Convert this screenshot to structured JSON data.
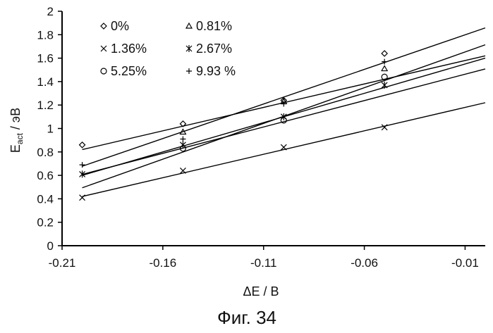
{
  "figure": {
    "caption": "Фиг. 34"
  },
  "chart_data": {
    "type": "scatter",
    "xlabel": "ΔE / B",
    "ylabel_main": "E",
    "ylabel_sub": "act",
    "ylabel_unit": " / эВ",
    "xlim": [
      -0.21,
      0.0
    ],
    "ylim": [
      0,
      2
    ],
    "xticks": [
      -0.21,
      -0.16,
      -0.11,
      -0.06,
      -0.01
    ],
    "xtick_labels": [
      "-0.21",
      "-0.16",
      "-0.11",
      "-0.06",
      "-0.01"
    ],
    "yticks": [
      0,
      0.2,
      0.4,
      0.6,
      0.8,
      1,
      1.2,
      1.4,
      1.6,
      1.8,
      2
    ],
    "ytick_labels": [
      "0",
      "0.2",
      "0.4",
      "0.6",
      "0.8",
      "1",
      "1.2",
      "1.4",
      "1.6",
      "1.8",
      "2"
    ],
    "grid": false,
    "legend_position": "top-left",
    "trendlines": true,
    "series": [
      {
        "name": "0%",
        "marker": "diamond",
        "x": [
          -0.2,
          -0.15,
          -0.1,
          -0.05
        ],
        "y": [
          0.86,
          1.04,
          1.24,
          1.64
        ],
        "fit": [
          0.82,
          4.0
        ]
      },
      {
        "name": "0.81%",
        "marker": "triangle",
        "x": [
          -0.15,
          -0.1,
          -0.05
        ],
        "y": [
          0.97,
          1.23,
          1.51
        ],
        "fit": [
          0.608,
          4.5
        ]
      },
      {
        "name": "1.36%",
        "marker": "x",
        "x": [
          -0.2,
          -0.15,
          -0.1,
          -0.05
        ],
        "y": [
          0.41,
          0.64,
          0.84,
          1.01
        ],
        "fit": [
          0.42,
          4.0
        ]
      },
      {
        "name": "2.67%",
        "marker": "asterisk",
        "x": [
          -0.2,
          -0.15,
          -0.1,
          -0.05
        ],
        "y": [
          0.61,
          0.86,
          1.1,
          1.37
        ],
        "fit": [
          0.6,
          5.0
        ]
      },
      {
        "name": "5.25%",
        "marker": "circle",
        "x": [
          -0.15,
          -0.1,
          -0.05
        ],
        "y": [
          0.83,
          1.07,
          1.44
        ],
        "fit": [
          0.494,
          6.1
        ]
      },
      {
        "name": "9.93 %",
        "marker": "plus",
        "x": [
          -0.2,
          -0.15,
          -0.1,
          -0.05
        ],
        "y": [
          0.69,
          0.91,
          1.21,
          1.57
        ],
        "fit": [
          0.678,
          5.9
        ]
      }
    ]
  }
}
